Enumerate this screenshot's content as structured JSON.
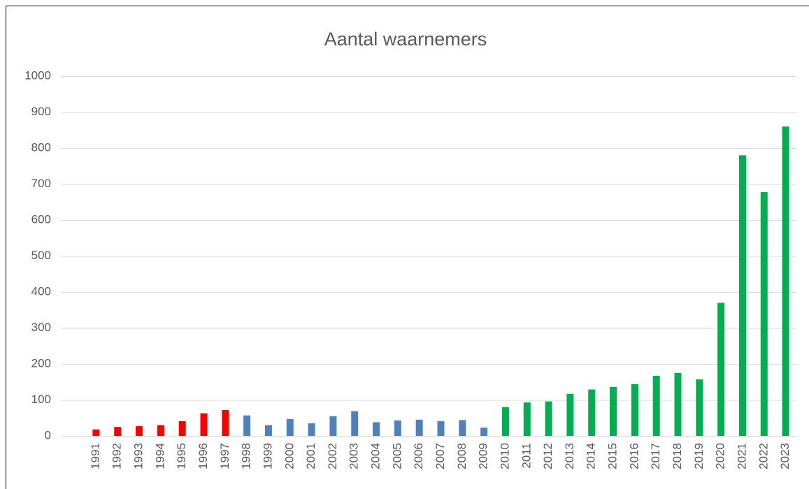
{
  "chart_data": {
    "type": "bar",
    "title": "Aantal waarnemers",
    "categories": [
      "1991",
      "1992",
      "1993",
      "1994",
      "1995",
      "1996",
      "1997",
      "1998",
      "1999",
      "2000",
      "2001",
      "2002",
      "2003",
      "2004",
      "2005",
      "2006",
      "2007",
      "2008",
      "2009",
      "2010",
      "2011",
      "2012",
      "2013",
      "2014",
      "2015",
      "2016",
      "2017",
      "2018",
      "2019",
      "2020",
      "2021",
      "2022",
      "2023"
    ],
    "values": [
      18,
      25,
      27,
      30,
      41,
      63,
      72,
      57,
      30,
      47,
      35,
      55,
      69,
      38,
      43,
      45,
      41,
      44,
      23,
      80,
      93,
      96,
      117,
      129,
      136,
      144,
      167,
      175,
      157,
      370,
      780,
      678,
      860
    ],
    "colors": [
      "#ff0000",
      "#ff0000",
      "#ff0000",
      "#ff0000",
      "#ff0000",
      "#ff0000",
      "#ff0000",
      "#4f81bd",
      "#4f81bd",
      "#4f81bd",
      "#4f81bd",
      "#4f81bd",
      "#4f81bd",
      "#4f81bd",
      "#4f81bd",
      "#4f81bd",
      "#4f81bd",
      "#4f81bd",
      "#4f81bd",
      "#00b050",
      "#00b050",
      "#00b050",
      "#00b050",
      "#00b050",
      "#00b050",
      "#00b050",
      "#00b050",
      "#00b050",
      "#00b050",
      "#00b050",
      "#00b050",
      "#00b050",
      "#00b050"
    ],
    "ylim": [
      0,
      1000
    ],
    "yticks": [
      0,
      100,
      200,
      300,
      400,
      500,
      600,
      700,
      800,
      900,
      1000
    ],
    "grid": true
  }
}
